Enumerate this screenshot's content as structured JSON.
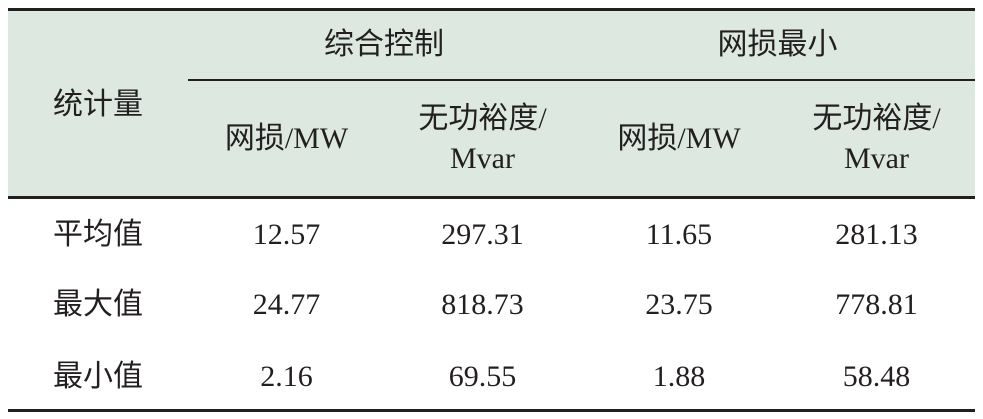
{
  "table": {
    "header": {
      "row_label": "统计量",
      "groups": [
        {
          "title": "综合控制",
          "columns": [
            [
              "网损/MW"
            ],
            [
              "无功裕度/",
              "Mvar"
            ]
          ]
        },
        {
          "title": "网损最小",
          "columns": [
            [
              "网损/MW"
            ],
            [
              "无功裕度/",
              "Mvar"
            ]
          ]
        }
      ]
    },
    "rows": [
      [
        "平均值",
        12.57,
        297.31,
        11.65,
        281.13
      ],
      [
        "最大值",
        24.77,
        818.73,
        23.75,
        778.81
      ],
      [
        "最小值",
        2.16,
        69.55,
        1.88,
        58.48
      ]
    ]
  }
}
